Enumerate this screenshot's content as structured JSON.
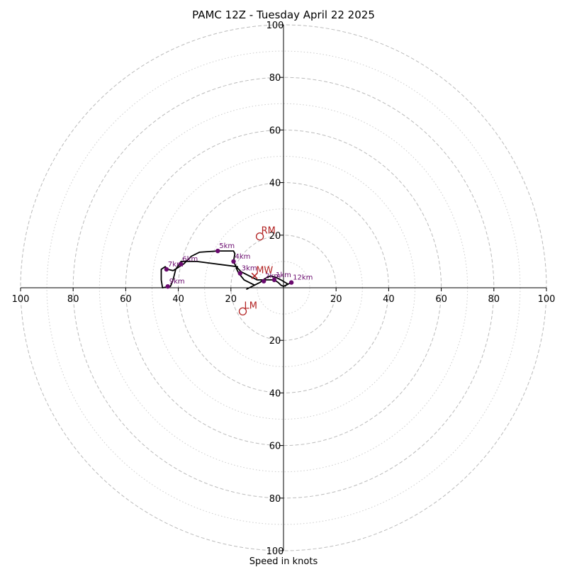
{
  "chart_data": {
    "type": "line",
    "title": "PAMC 12Z - Tuesday April 22 2025",
    "xlabel": "Speed in knots",
    "ylabel": "",
    "xlim": [
      -100,
      100
    ],
    "ylim": [
      -100,
      100
    ],
    "grid": true,
    "rings_major": [
      20,
      40,
      60,
      80,
      100
    ],
    "rings_minor": [
      10,
      30,
      50,
      70,
      90
    ],
    "ticks": [
      100,
      80,
      60,
      40,
      20
    ],
    "colors": {
      "trace": "#000000",
      "heights": "#6a0a6e",
      "motion": "#b22222",
      "grid": "#bbbbbb",
      "axis": "#000000"
    },
    "trace": [
      [
        0.5,
        0.5
      ],
      [
        1.5,
        1.5
      ],
      [
        -1,
        3
      ],
      [
        -3,
        4
      ],
      [
        -5,
        4.5
      ],
      [
        -7,
        3.5
      ],
      [
        -9,
        2
      ],
      [
        -11,
        1
      ],
      [
        -13,
        0
      ],
      [
        -14,
        -0.5
      ],
      [
        -13,
        0
      ],
      [
        -11,
        1
      ],
      [
        -15,
        3
      ],
      [
        -17,
        5.5
      ],
      [
        -18,
        7.5
      ],
      [
        -17.5,
        8
      ],
      [
        -33,
        10
      ],
      [
        -39,
        10
      ],
      [
        -41,
        7
      ],
      [
        -42,
        3
      ],
      [
        -43,
        0.5
      ],
      [
        -46,
        0
      ],
      [
        -46.5,
        3
      ],
      [
        -46.5,
        7
      ],
      [
        -45,
        8
      ],
      [
        -44,
        7
      ],
      [
        -42,
        6.5
      ],
      [
        -38,
        9
      ],
      [
        -36,
        11
      ],
      [
        -35,
        12
      ],
      [
        -32,
        13.5
      ],
      [
        -25,
        14
      ],
      [
        -19,
        14
      ],
      [
        -18.5,
        13
      ],
      [
        -19,
        10
      ],
      [
        -18,
        8
      ],
      [
        -16,
        6
      ],
      [
        -14,
        5
      ],
      [
        -12,
        4
      ],
      [
        -10,
        3
      ],
      [
        -8,
        3
      ],
      [
        -6,
        3
      ],
      [
        -4,
        3
      ],
      [
        -3.5,
        3
      ],
      [
        -2,
        2
      ],
      [
        -1,
        1
      ],
      [
        0,
        0.5
      ],
      [
        1,
        1
      ],
      [
        3,
        2
      ],
      [
        1,
        1
      ],
      [
        0.5,
        0.5
      ]
    ],
    "height_markers": [
      {
        "label": "1km",
        "u": -3.5,
        "v": 3
      },
      {
        "label": "2km",
        "u": -7.5,
        "v": 2.5
      },
      {
        "label": "3km",
        "u": -16.5,
        "v": 5.5
      },
      {
        "label": "4km",
        "u": -19,
        "v": 10
      },
      {
        "label": "5km",
        "u": -25,
        "v": 14
      },
      {
        "label": "6km",
        "u": -39,
        "v": 9
      },
      {
        "label": "7km",
        "u": -44.5,
        "v": 7
      },
      {
        "label": "9km",
        "u": -44,
        "v": 0.5
      },
      {
        "label": "12km",
        "u": 3,
        "v": 2
      }
    ],
    "storm_motion": [
      {
        "label": "RM",
        "u": -9,
        "v": 19.5
      },
      {
        "label": "LM",
        "u": -15.5,
        "v": -9
      },
      {
        "label": "MW",
        "u": -11,
        "v": 4.5
      }
    ]
  }
}
